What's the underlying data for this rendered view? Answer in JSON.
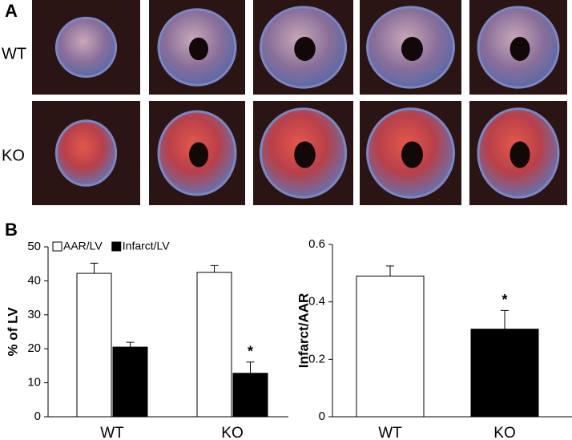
{
  "panel_a": {
    "label": "A",
    "rows": [
      "WT",
      "KO"
    ]
  },
  "panel_b": {
    "label": "B"
  },
  "chart_data": [
    {
      "type": "bar",
      "ylabel": "% of LV",
      "categories": [
        "WT",
        "KO"
      ],
      "series": [
        {
          "name": "AAR/LV",
          "color": "#ffffff",
          "values": [
            42.2,
            42.5
          ],
          "errors": [
            3.0,
            2.0
          ]
        },
        {
          "name": "Infarct/LV",
          "color": "#000000",
          "values": [
            20.5,
            12.8
          ],
          "errors": [
            1.4,
            3.3
          ]
        }
      ],
      "ylim": [
        0,
        50
      ],
      "yticks": [
        0,
        10,
        20,
        30,
        40,
        50
      ],
      "legend": "top-left",
      "annotations": [
        "*"
      ]
    },
    {
      "type": "bar",
      "ylabel": "Infarct/AAR",
      "categories": [
        "WT",
        "KO"
      ],
      "values": [
        0.49,
        0.305
      ],
      "errors": [
        0.035,
        0.065
      ],
      "colors": [
        "#ffffff",
        "#000000"
      ],
      "ylim": [
        0,
        0.6
      ],
      "yticks": [
        0,
        0.2,
        0.4,
        0.6
      ],
      "annotations": [
        "*"
      ]
    }
  ]
}
